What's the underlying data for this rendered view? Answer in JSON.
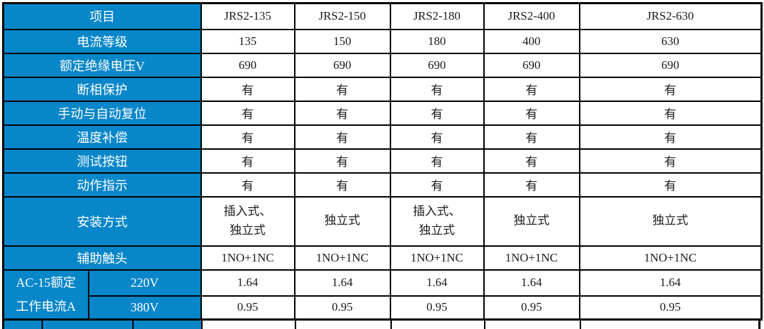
{
  "table": {
    "header": {
      "label": "项目",
      "models": [
        "JRS2-135",
        "JRS2-150",
        "JRS2-180",
        "JRS2-400",
        "JRS2-630"
      ]
    },
    "rows": [
      {
        "label": "电流等级",
        "values": [
          "135",
          "150",
          "180",
          "400",
          "630"
        ]
      },
      {
        "label": "额定绝缘电压V",
        "values": [
          "690",
          "690",
          "690",
          "690",
          "690"
        ]
      },
      {
        "label": "断相保护",
        "values": [
          "有",
          "有",
          "有",
          "有",
          "有"
        ]
      },
      {
        "label": "手动与自动复位",
        "values": [
          "有",
          "有",
          "有",
          "有",
          "有"
        ]
      },
      {
        "label": "温度补偿",
        "values": [
          "有",
          "有",
          "有",
          "有",
          "有"
        ]
      },
      {
        "label": "测试按钮",
        "values": [
          "有",
          "有",
          "有",
          "有",
          "有"
        ]
      },
      {
        "label": "动作指示",
        "values": [
          "有",
          "有",
          "有",
          "有",
          "有"
        ]
      },
      {
        "label": "安装方式",
        "values": [
          "插入式、\n独立式",
          "独立式",
          "插入式、\n独立式",
          "独立式",
          "独立式"
        ]
      },
      {
        "label": "辅助触头",
        "values": [
          "1NO+1NC",
          "1NO+1NC",
          "1NO+1NC",
          "1NO+1NC",
          "1NO+1NC"
        ]
      }
    ],
    "ac15_group": {
      "label": "AC-15额定\n工作电流A",
      "sub_rows": [
        {
          "label": "220V",
          "values": [
            "1.64",
            "1.64",
            "1.64",
            "1.64",
            "1.64"
          ]
        },
        {
          "label": "380V",
          "values": [
            "0.95",
            "0.95",
            "0.95",
            "0.95",
            "0.95"
          ]
        }
      ]
    }
  },
  "colors": {
    "header_bg": "#0786C9",
    "header_text": "#FFFFFF",
    "cell_text": "#1A1A1A",
    "border": "#000000"
  }
}
